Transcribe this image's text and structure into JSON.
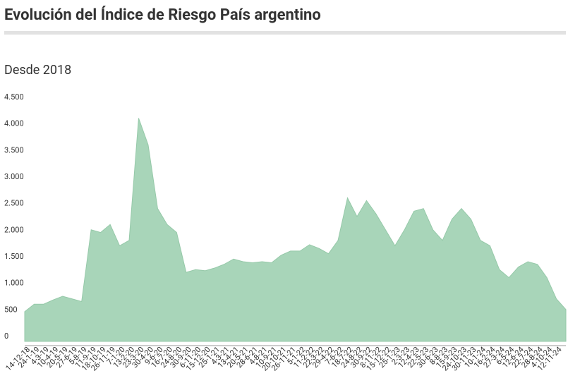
{
  "chart_data": {
    "type": "area",
    "title": "Evolución del Índice de Riesgo País argentino",
    "subtitle": "Desde 2018",
    "color": "#a8d5b9",
    "categories": [
      "14-12-18",
      "24-1-19",
      "4-3-19",
      "10-4-19",
      "20-5-19",
      "27-6-19",
      "5-8-19",
      "11-9-19",
      "18-10-19",
      "26-11-19",
      "7-1-20",
      "13-2-20",
      "23-3-20",
      "30-4-20",
      "9-6-20",
      "16-7-20",
      "24-8-20",
      "30-9-20",
      "6-11-20",
      "15-12-20",
      "25-1-21",
      "4-3-21",
      "13-4-21",
      "20-5-21",
      "28-6-21",
      "4-8-21",
      "10-9-21",
      "20-10-21",
      "26-11-21",
      "5-1-22",
      "11-2-22",
      "22-3-22",
      "29-4-22",
      "7-6-22",
      "18-7-22",
      "24-8-22",
      "30-9-22",
      "8-11-22",
      "15-12-22",
      "25-1-23",
      "2-3-23",
      "12-4-23",
      "22-5-23",
      "30-6-23",
      "8-8-23",
      "15-9-23",
      "24-10-23",
      "30-11-23",
      "10-1-24",
      "16-2-24",
      "27-3-24",
      "6-5-24",
      "12-6-24",
      "22-7-24",
      "28-8-24",
      "4-10-24",
      "12-11-24",
      null
    ],
    "values": [
      560,
      700,
      700,
      780,
      850,
      800,
      750,
      2100,
      2050,
      2200,
      1800,
      1900,
      4200,
      3700,
      2500,
      2200,
      2050,
      1300,
      1350,
      1330,
      1380,
      1450,
      1550,
      1500,
      1480,
      1500,
      1480,
      1620,
      1700,
      1700,
      1820,
      1750,
      1650,
      1900,
      2700,
      2350,
      2650,
      2400,
      2100,
      1800,
      2100,
      2450,
      2500,
      2100,
      1900,
      2300,
      2500,
      2300,
      1900,
      1800,
      1350,
      1200,
      1400,
      1500,
      1450,
      1200,
      800,
      600
    ],
    "ylim": [
      0,
      4500
    ],
    "yticks": [
      0,
      500,
      {
        "value": 1000,
        "label": "1.000"
      },
      {
        "value": 1500,
        "label": "1.500"
      },
      {
        "value": 2000,
        "label": "2.000"
      },
      {
        "value": 2500,
        "label": "2.500"
      },
      {
        "value": 3000,
        "label": "3.000"
      },
      {
        "value": 3500,
        "label": "3.500"
      },
      {
        "value": 4000,
        "label": "4.000"
      },
      {
        "value": 4500,
        "label": "4.500"
      }
    ],
    "grid": false
  }
}
